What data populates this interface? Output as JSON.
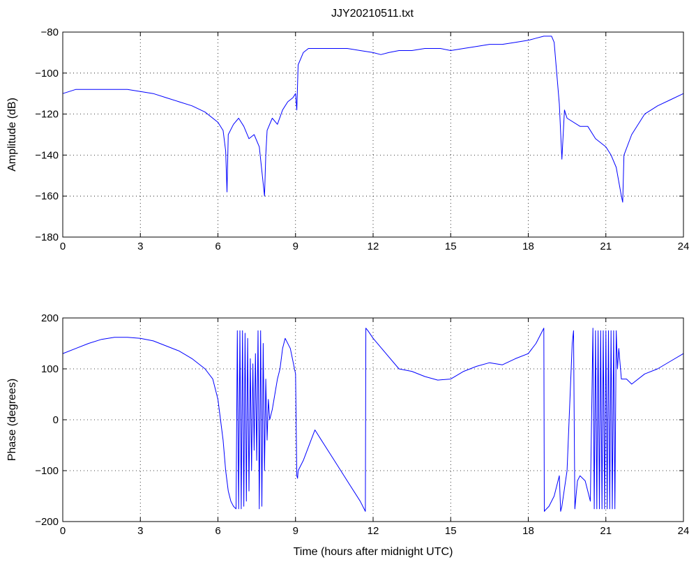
{
  "title": "JJY20210511.txt",
  "chart_data": [
    {
      "type": "line",
      "title": "JJY20210511.txt",
      "xlabel": "",
      "ylabel": "Amplitude (dB)",
      "xlim": [
        0,
        24
      ],
      "ylim": [
        -180,
        -80
      ],
      "xticks": [
        0,
        3,
        6,
        9,
        12,
        15,
        18,
        21,
        24
      ],
      "yticks": [
        -80,
        -100,
        -120,
        -140,
        -160,
        -180
      ],
      "xtick_labels": [
        "0",
        "3",
        "6",
        "9",
        "12",
        "15",
        "18",
        "21",
        "24"
      ],
      "ytick_labels": [
        "−80",
        "−100",
        "−120",
        "−140",
        "−160",
        "−180"
      ],
      "grid": true,
      "color": "#0000ff",
      "series": [
        {
          "x": [
            0,
            0.5,
            1,
            1.5,
            2,
            2.5,
            3,
            3.5,
            4,
            4.5,
            5,
            5.5,
            6,
            6.2,
            6.3,
            6.35,
            6.4,
            6.6,
            6.8,
            7,
            7.2,
            7.4,
            7.6,
            7.8,
            7.85,
            7.9,
            8.1,
            8.3,
            8.5,
            8.7,
            8.9,
            9.0,
            9.05,
            9.1,
            9.3,
            9.5,
            10,
            10.5,
            11,
            11.5,
            12,
            12.3,
            12.6,
            13,
            13.5,
            14,
            14.3,
            14.6,
            15,
            15.5,
            16,
            16.5,
            17,
            17.5,
            18,
            18.3,
            18.6,
            18.9,
            19.0,
            19.1,
            19.2,
            19.3,
            19.4,
            19.5,
            20,
            20.3,
            20.6,
            21,
            21.2,
            21.4,
            21.6,
            21.65,
            21.7,
            22,
            22.5,
            23,
            23.5,
            24
          ],
          "y": [
            -110,
            -108,
            -108,
            -108,
            -108,
            -108,
            -109,
            -110,
            -112,
            -114,
            -116,
            -119,
            -124,
            -128,
            -138,
            -158,
            -130,
            -125,
            -122,
            -126,
            -132,
            -130,
            -136,
            -160,
            -140,
            -128,
            -122,
            -125,
            -118,
            -114,
            -112,
            -110,
            -118,
            -96,
            -90,
            -88,
            -88,
            -88,
            -88,
            -89,
            -90,
            -91,
            -90,
            -89,
            -89,
            -88,
            -88,
            -88,
            -89,
            -88,
            -87,
            -86,
            -86,
            -85,
            -84,
            -83,
            -82,
            -82,
            -85,
            -100,
            -115,
            -142,
            -118,
            -122,
            -126,
            -126,
            -132,
            -136,
            -140,
            -146,
            -160,
            -163,
            -140,
            -130,
            -120,
            -116,
            -113,
            -110
          ]
        }
      ]
    },
    {
      "type": "line",
      "title": "",
      "xlabel": "Time (hours after midnight UTC)",
      "ylabel": "Phase (degrees)",
      "xlim": [
        0,
        24
      ],
      "ylim": [
        -200,
        200
      ],
      "xticks": [
        0,
        3,
        6,
        9,
        12,
        15,
        18,
        21,
        24
      ],
      "yticks": [
        200,
        100,
        0,
        -100,
        -200
      ],
      "xtick_labels": [
        "0",
        "3",
        "6",
        "9",
        "12",
        "15",
        "18",
        "21",
        "24"
      ],
      "ytick_labels": [
        "200",
        "100",
        "0",
        "−100",
        "−200"
      ],
      "grid": true,
      "color": "#0000ff",
      "series": [
        {
          "x": [
            0,
            0.5,
            1,
            1.5,
            2,
            2.5,
            3,
            3.5,
            4,
            4.5,
            5,
            5.5,
            5.8,
            6.0,
            6.1,
            6.2,
            6.3,
            6.4,
            6.5,
            6.6,
            6.7,
            6.75,
            6.8,
            6.85,
            6.9,
            6.95,
            7.0,
            7.05,
            7.1,
            7.15,
            7.2,
            7.25,
            7.3,
            7.35,
            7.4,
            7.45,
            7.5,
            7.55,
            7.6,
            7.65,
            7.7,
            7.75,
            7.8,
            7.85,
            7.9,
            7.95,
            8.0,
            8.1,
            8.2,
            8.3,
            8.4,
            8.5,
            8.6,
            8.8,
            9.0,
            9.05,
            9.08,
            9.1,
            9.3,
            9.6,
            9.75,
            10,
            10.5,
            11,
            11.5,
            11.7,
            11.72,
            11.8,
            12,
            12.5,
            13,
            13.5,
            14,
            14.5,
            15,
            15.5,
            16,
            16.5,
            17,
            17.5,
            18,
            18.3,
            18.6,
            18.62,
            18.65,
            18.8,
            19.0,
            19.2,
            19.25,
            19.3,
            19.5,
            19.7,
            19.75,
            19.8,
            19.9,
            20.0,
            20.2,
            20.4,
            20.5,
            20.55,
            20.6,
            20.65,
            20.7,
            20.75,
            20.8,
            20.85,
            20.9,
            20.95,
            21.0,
            21.05,
            21.1,
            21.15,
            21.2,
            21.25,
            21.3,
            21.35,
            21.4,
            21.45,
            21.5,
            21.6,
            21.8,
            22,
            22.5,
            23,
            23.5,
            24
          ],
          "y": [
            130,
            140,
            150,
            158,
            162,
            162,
            160,
            155,
            145,
            135,
            120,
            100,
            80,
            40,
            0,
            -40,
            -100,
            -140,
            -160,
            -170,
            -175,
            175,
            -175,
            175,
            -175,
            175,
            -170,
            170,
            -160,
            160,
            -140,
            120,
            -100,
            110,
            -60,
            130,
            -80,
            175,
            -175,
            175,
            -170,
            150,
            -100,
            80,
            -40,
            40,
            0,
            20,
            50,
            80,
            100,
            140,
            160,
            140,
            90,
            -110,
            -115,
            -100,
            -80,
            -40,
            -20,
            -40,
            -80,
            -120,
            -160,
            -180,
            180,
            175,
            160,
            130,
            100,
            95,
            85,
            78,
            80,
            95,
            105,
            112,
            108,
            120,
            130,
            150,
            180,
            -180,
            -178,
            -170,
            -150,
            -110,
            -180,
            -170,
            -100,
            150,
            175,
            -175,
            -120,
            -110,
            -120,
            -160,
            180,
            -175,
            175,
            -175,
            175,
            -175,
            175,
            -175,
            175,
            -175,
            175,
            -175,
            175,
            -175,
            175,
            -175,
            175,
            -175,
            175,
            100,
            140,
            80,
            80,
            70,
            90,
            100,
            115,
            130
          ]
        }
      ]
    }
  ]
}
